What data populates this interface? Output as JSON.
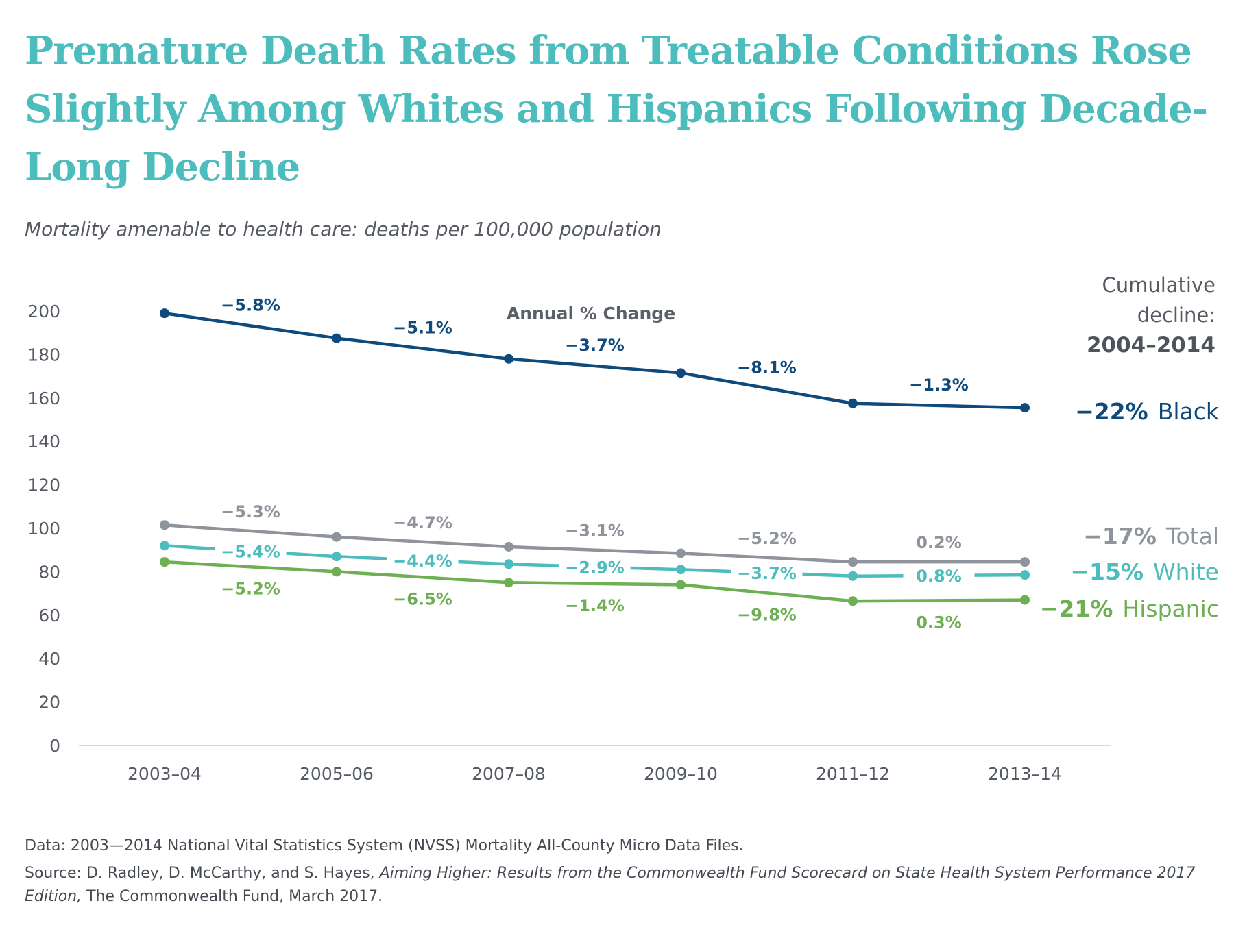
{
  "title": "Premature Death Rates from Treatable Conditions Rose Slightly Among Whites and Hispanics Following Decade-Long Decline",
  "subtitle": "Mortality amenable to health care: deaths per 100,000 population",
  "annual_change_label": "Annual % Change",
  "cumulative_header": [
    "Cumulative",
    "decline:",
    "2004–2014"
  ],
  "footer": {
    "data_note": "Data: 2003—2014 National Vital Statistics System (NVSS) Mortality All-County Micro Data Files.",
    "source_prefix": "Source: D. Radley, D. McCarthy, and S. Hayes, ",
    "source_title": "Aiming Higher: Results from the Commonwealth Fund Scorecard on State Health System Performance 2017 Edition,",
    "source_suffix": " The Commonwealth Fund, March 2017."
  },
  "chart_data": {
    "type": "line",
    "title": "Premature Death Rates from Treatable Conditions Rose Slightly Among Whites and Hispanics Following Decade-Long Decline",
    "ylabel": "Mortality amenable to health care: deaths per 100,000 population",
    "xlabel": "",
    "categories": [
      "2003–04",
      "2005–06",
      "2007–08",
      "2009–10",
      "2011–12",
      "2013–14"
    ],
    "ylim": [
      0,
      200
    ],
    "yticks": [
      0,
      20,
      40,
      60,
      80,
      100,
      120,
      140,
      160,
      180,
      200
    ],
    "grid": false,
    "legend": "right",
    "series": [
      {
        "name": "Black",
        "color": "#0e4a7c",
        "values": [
          199,
          187.5,
          178,
          171.5,
          157.5,
          155.5
        ],
        "annual_change": [
          "−5.8%",
          "−5.1%",
          "−3.7%",
          "−8.1%",
          "−1.3%"
        ],
        "cumulative_decline": "−22%"
      },
      {
        "name": "Total",
        "color": "#8e939c",
        "values": [
          101.5,
          96,
          91.5,
          88.5,
          84.5,
          84.5
        ],
        "annual_change": [
          "−5.3%",
          "−4.7%",
          "−3.1%",
          "−5.2%",
          "0.2%"
        ],
        "cumulative_decline": "−17%"
      },
      {
        "name": "White",
        "color": "#4cbcbd",
        "values": [
          92,
          87,
          83.5,
          81,
          78,
          78.5
        ],
        "annual_change": [
          "−5.4%",
          "−4.4%",
          "−2.9%",
          "−3.7%",
          "0.8%"
        ],
        "cumulative_decline": "−15%"
      },
      {
        "name": "Hispanic",
        "color": "#6daf52",
        "values": [
          84.5,
          80,
          75,
          74,
          66.5,
          67
        ],
        "annual_change": [
          "−5.2%",
          "−6.5%",
          "−1.4%",
          "−9.8%",
          "0.3%"
        ],
        "cumulative_decline": "−21%"
      }
    ]
  }
}
